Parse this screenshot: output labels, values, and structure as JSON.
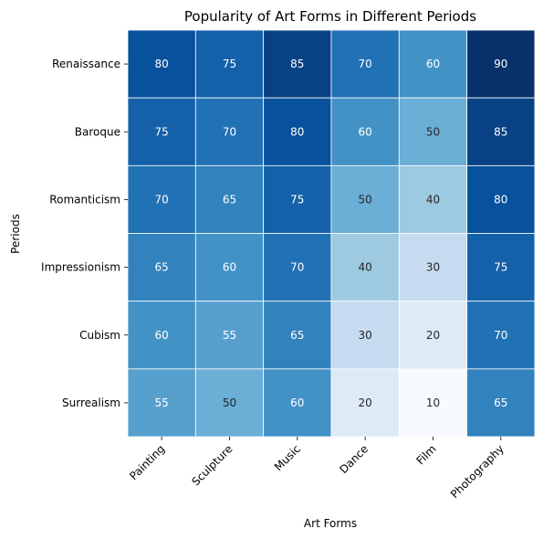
{
  "chart_data": {
    "type": "heatmap",
    "title": "Popularity of Art Forms in Different Periods",
    "xlabel": "Art Forms",
    "ylabel": "Periods",
    "x_categories": [
      "Painting",
      "Sculpture",
      "Music",
      "Dance",
      "Film",
      "Photography"
    ],
    "y_categories": [
      "Renaissance",
      "Baroque",
      "Romanticism",
      "Impressionism",
      "Cubism",
      "Surrealism"
    ],
    "values": [
      [
        80,
        75,
        85,
        70,
        60,
        90
      ],
      [
        75,
        70,
        80,
        60,
        50,
        85
      ],
      [
        70,
        65,
        75,
        50,
        40,
        80
      ],
      [
        65,
        60,
        70,
        40,
        30,
        75
      ],
      [
        60,
        55,
        65,
        30,
        20,
        70
      ],
      [
        55,
        50,
        60,
        20,
        10,
        65
      ]
    ],
    "value_range": [
      10,
      90
    ],
    "colormap": "Blues",
    "annotated": true,
    "grid": false,
    "colorbar": false
  }
}
